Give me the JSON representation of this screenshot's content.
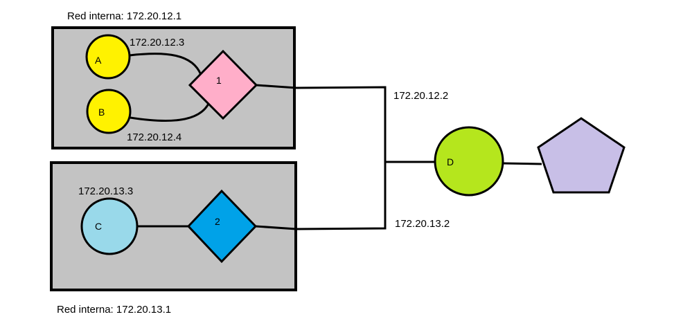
{
  "colors": {
    "network_box": "#c3c3c3",
    "stroke": "#000000",
    "node_a": "#fff200",
    "node_b": "#fff200",
    "node_c": "#99d9ea",
    "router_1": "#ffaec9",
    "router_2": "#00a2e8",
    "node_d": "#b5e61d",
    "pentagon": "#c8bfe7"
  },
  "networks": {
    "top": {
      "title": "Red interna: 172.20.12.1"
    },
    "bottom": {
      "title": "Red interna: 172.20.13.1"
    }
  },
  "nodes": {
    "a": {
      "label": "A",
      "ip": "172.20.12.3"
    },
    "b": {
      "label": "B",
      "ip": "172.20.12.4"
    },
    "c": {
      "label": "C",
      "ip": "172.20.13.3"
    },
    "d": {
      "label": "D"
    },
    "router_1": {
      "label": "1"
    },
    "router_2": {
      "label": "2"
    }
  },
  "links": {
    "router_1_to_d": {
      "ip": "172.20.12.2"
    },
    "router_2_to_d": {
      "ip": "172.20.13.2"
    }
  }
}
